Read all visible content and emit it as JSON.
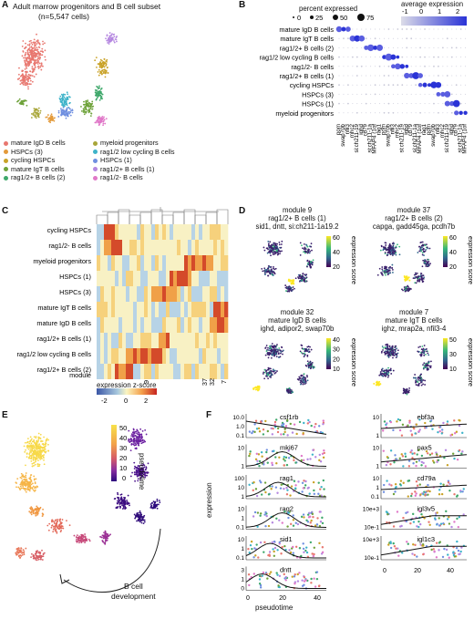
{
  "panel_labels": {
    "a": "A",
    "b": "B",
    "c": "C",
    "d": "D",
    "e": "E",
    "f": "F"
  },
  "panel_a": {
    "title": "Adult marrow progenitors and B cell subset",
    "subtitle": "(n=5,547 cells)",
    "legend": [
      {
        "label": "mature IgD B cells",
        "color": "#e8776f"
      },
      {
        "label": "myeloid progenitors",
        "color": "#a8a63a"
      },
      {
        "label": "HSPCs (3)",
        "color": "#e39a3a"
      },
      {
        "label": "rag1/2 low cycling B cells",
        "color": "#3db3c9"
      },
      {
        "label": "cycling HSPCs",
        "color": "#c9a227"
      },
      {
        "label": "HSPCs (1)",
        "color": "#6f8fe0"
      },
      {
        "label": "mature IgT B cells",
        "color": "#6ea23a"
      },
      {
        "label": "rag1/2+ B cells (1)",
        "color": "#b587e0"
      },
      {
        "label": "rag1/2+ B cells (2)",
        "color": "#3fa86b"
      },
      {
        "label": "rag1/2- B cells",
        "color": "#e078c8"
      }
    ]
  },
  "panel_b": {
    "legend_size_title": "percent expressed",
    "size_ticks": [
      "0",
      "25",
      "50",
      "75"
    ],
    "legend_color_title": "average expression",
    "color_ticks": [
      "-1",
      "0",
      "1",
      "2"
    ],
    "rows": [
      "mature IgD B cells",
      "mature IgT B cells",
      "rag1/2+ B cells (2)",
      "rag1/2 low cycling B cells",
      "rag1/2- B cells",
      "rag1/2+ B cells (1)",
      "cycling HSPCs",
      "HSPCs (3)",
      "HSPCs (1)",
      "myeloid progenitors"
    ],
    "genes_visible": [
      "pom",
      "swap70b",
      "nfil3",
      "mhc2",
      "si:ch211-19",
      "ighd",
      "cd79",
      "si:ch211-1a",
      "MFAP4 (1of",
      "rag1"
    ]
  },
  "panel_c": {
    "rows": [
      "cycling HSPCs",
      "rag1/2- B cells",
      "myeloid progenitors",
      "HSPCs (1)",
      "HSPCs (3)",
      "mature IgT B cells",
      "mature IgD B cells",
      "rag1/2+ B cells (1)",
      "rag1/2 low cycling B cells",
      "rag1/2+ B cells (2)",
      "module"
    ],
    "module_marks": [
      "9",
      "37",
      "32",
      "7"
    ],
    "colorbar_title": "expression z-score",
    "colorbar_ticks": [
      "-2",
      "0",
      "2"
    ]
  },
  "panel_d": {
    "maps": [
      {
        "title": "module 9",
        "sub1": "rag1/2+ B cells (1)",
        "sub2": "sid1, dntt, si:ch211-1a19.2",
        "ticks": [
          "60",
          "40",
          "20"
        ]
      },
      {
        "title": "module 37",
        "sub1": "rag1/2+ B cells (2)",
        "sub2": "capga, gadd45ga, pcdh7b",
        "ticks": [
          "60",
          "40",
          "20"
        ]
      },
      {
        "title": "module 32",
        "sub1": "mature IgD B cells",
        "sub2": "ighd, adipor2, swap70b",
        "ticks": [
          "40",
          "30",
          "20",
          "10"
        ]
      },
      {
        "title": "module 7",
        "sub1": "mature IgT B cells",
        "sub2": "ighz, mrap2a, nfil3-4",
        "ticks": [
          "50",
          "30",
          "10"
        ]
      }
    ],
    "axis_label": "expression score"
  },
  "panel_e": {
    "colorbar_title": "pseudotime",
    "ticks": [
      "50",
      "40",
      "30",
      "20",
      "10",
      "0"
    ],
    "arrow_label_1": "B cell",
    "arrow_label_2": "development"
  },
  "panel_f": {
    "ylabel": "expression",
    "xlabel": "pseudotime",
    "x_ticks": [
      "0",
      "20",
      "40"
    ],
    "left_genes": [
      {
        "name": "csf1rb",
        "yticks": [
          "10.0",
          "1.0",
          "0.1"
        ]
      },
      {
        "name": "mki67",
        "yticks": [
          "10",
          "1"
        ]
      },
      {
        "name": "rag1",
        "yticks": [
          "100",
          "10",
          "1"
        ]
      },
      {
        "name": "rag2",
        "yticks": [
          "10",
          "1",
          "0.1"
        ]
      },
      {
        "name": "sid1",
        "yticks": [
          "10",
          "1",
          "0.1"
        ]
      },
      {
        "name": "dntt",
        "yticks": [
          "3",
          "1",
          "0"
        ]
      }
    ],
    "right_genes": [
      {
        "name": "ebf3a",
        "yticks": [
          "10",
          "1"
        ]
      },
      {
        "name": "pax5",
        "yticks": [
          "10",
          "1"
        ]
      },
      {
        "name": "cd79a",
        "yticks": [
          "10",
          "1",
          "0.1"
        ]
      },
      {
        "name": "igl3v5",
        "yticks": [
          "10e+3",
          "10e-1"
        ]
      },
      {
        "name": "igl1c3",
        "yticks": [
          "10e+3",
          "10e-1"
        ]
      }
    ]
  }
}
